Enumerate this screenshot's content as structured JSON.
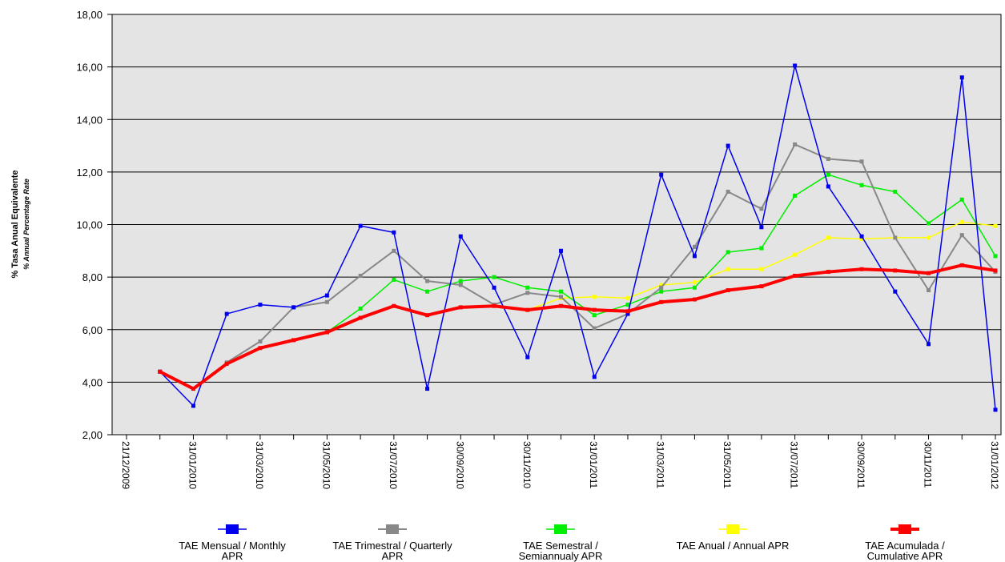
{
  "chart_data": {
    "type": "line",
    "y_label": "% Tasa Anual Equivalente",
    "y_sublabel": "% Annual Percentage Rate",
    "categories": [
      "21/12/2009",
      null,
      "31/01/2010",
      null,
      "31/03/2010",
      null,
      "31/05/2010",
      null,
      "31/07/2010",
      null,
      "30/09/2010",
      null,
      "30/11/2010",
      null,
      "31/01/2011",
      null,
      "31/03/2011",
      null,
      "31/05/2011",
      null,
      "31/07/2011",
      null,
      "30/09/2011",
      null,
      "30/11/2011",
      null,
      "31/01/2012"
    ],
    "ylim": [
      2,
      18
    ],
    "yticks": [
      {
        "value": 2,
        "label": "2,00"
      },
      {
        "value": 4,
        "label": "4,00"
      },
      {
        "value": 6,
        "label": "6,00"
      },
      {
        "value": 8,
        "label": "8,00"
      },
      {
        "value": 10,
        "label": "10,00"
      },
      {
        "value": 12,
        "label": "12,00"
      },
      {
        "value": 14,
        "label": "14,00"
      },
      {
        "value": 16,
        "label": "16,00"
      },
      {
        "value": 18,
        "label": "18,00"
      }
    ],
    "grid": true,
    "series": [
      {
        "name": "TAE Anual / Annual APR",
        "color": "#ffff00",
        "width": 1.5,
        "values": [
          null,
          null,
          null,
          null,
          null,
          null,
          null,
          null,
          null,
          null,
          null,
          null,
          6.75,
          7.2,
          7.25,
          7.2,
          7.7,
          7.8,
          8.3,
          8.3,
          8.85,
          9.5,
          9.45,
          9.5,
          9.5,
          10.1,
          9.95
        ]
      },
      {
        "name": "TAE Semestral / Semiannualy APR",
        "color": "#00ee00",
        "width": 1.5,
        "values": [
          null,
          null,
          null,
          null,
          null,
          null,
          5.9,
          6.8,
          7.9,
          7.45,
          7.85,
          8.0,
          7.6,
          7.45,
          6.55,
          6.95,
          7.45,
          7.6,
          8.95,
          9.1,
          11.1,
          11.9,
          11.5,
          11.25,
          10.05,
          10.95,
          8.8
        ]
      },
      {
        "name": "TAE Trimestral / Quarterly APR",
        "color": "#888888",
        "width": 2,
        "values": [
          null,
          null,
          null,
          4.75,
          5.55,
          6.85,
          7.05,
          8.05,
          9.0,
          7.85,
          7.7,
          6.95,
          7.4,
          7.25,
          6.05,
          6.6,
          7.6,
          9.15,
          11.25,
          10.6,
          13.05,
          12.5,
          12.4,
          9.5,
          7.5,
          9.6,
          8.2
        ]
      },
      {
        "name": "TAE Mensual /   Monthly APR",
        "color": "#0000ee",
        "width": 1.5,
        "values": [
          null,
          4.4,
          3.1,
          6.6,
          6.95,
          6.85,
          7.3,
          9.95,
          9.7,
          3.75,
          9.55,
          7.6,
          4.95,
          9.0,
          4.2,
          6.6,
          11.9,
          8.8,
          13.0,
          9.9,
          16.05,
          11.45,
          9.55,
          7.45,
          5.45,
          15.6,
          2.95
        ]
      },
      {
        "name": "TAE Acumulada / Cumulative APR",
        "color": "#ff0000",
        "width": 4,
        "values": [
          null,
          4.4,
          3.75,
          4.7,
          5.3,
          5.6,
          5.9,
          6.45,
          6.9,
          6.55,
          6.85,
          6.9,
          6.75,
          6.9,
          6.75,
          6.7,
          7.05,
          7.15,
          7.5,
          7.65,
          8.05,
          8.2,
          8.3,
          8.25,
          8.15,
          8.45,
          8.25
        ]
      }
    ],
    "legend_order": [
      3,
      2,
      1,
      0,
      4
    ]
  }
}
